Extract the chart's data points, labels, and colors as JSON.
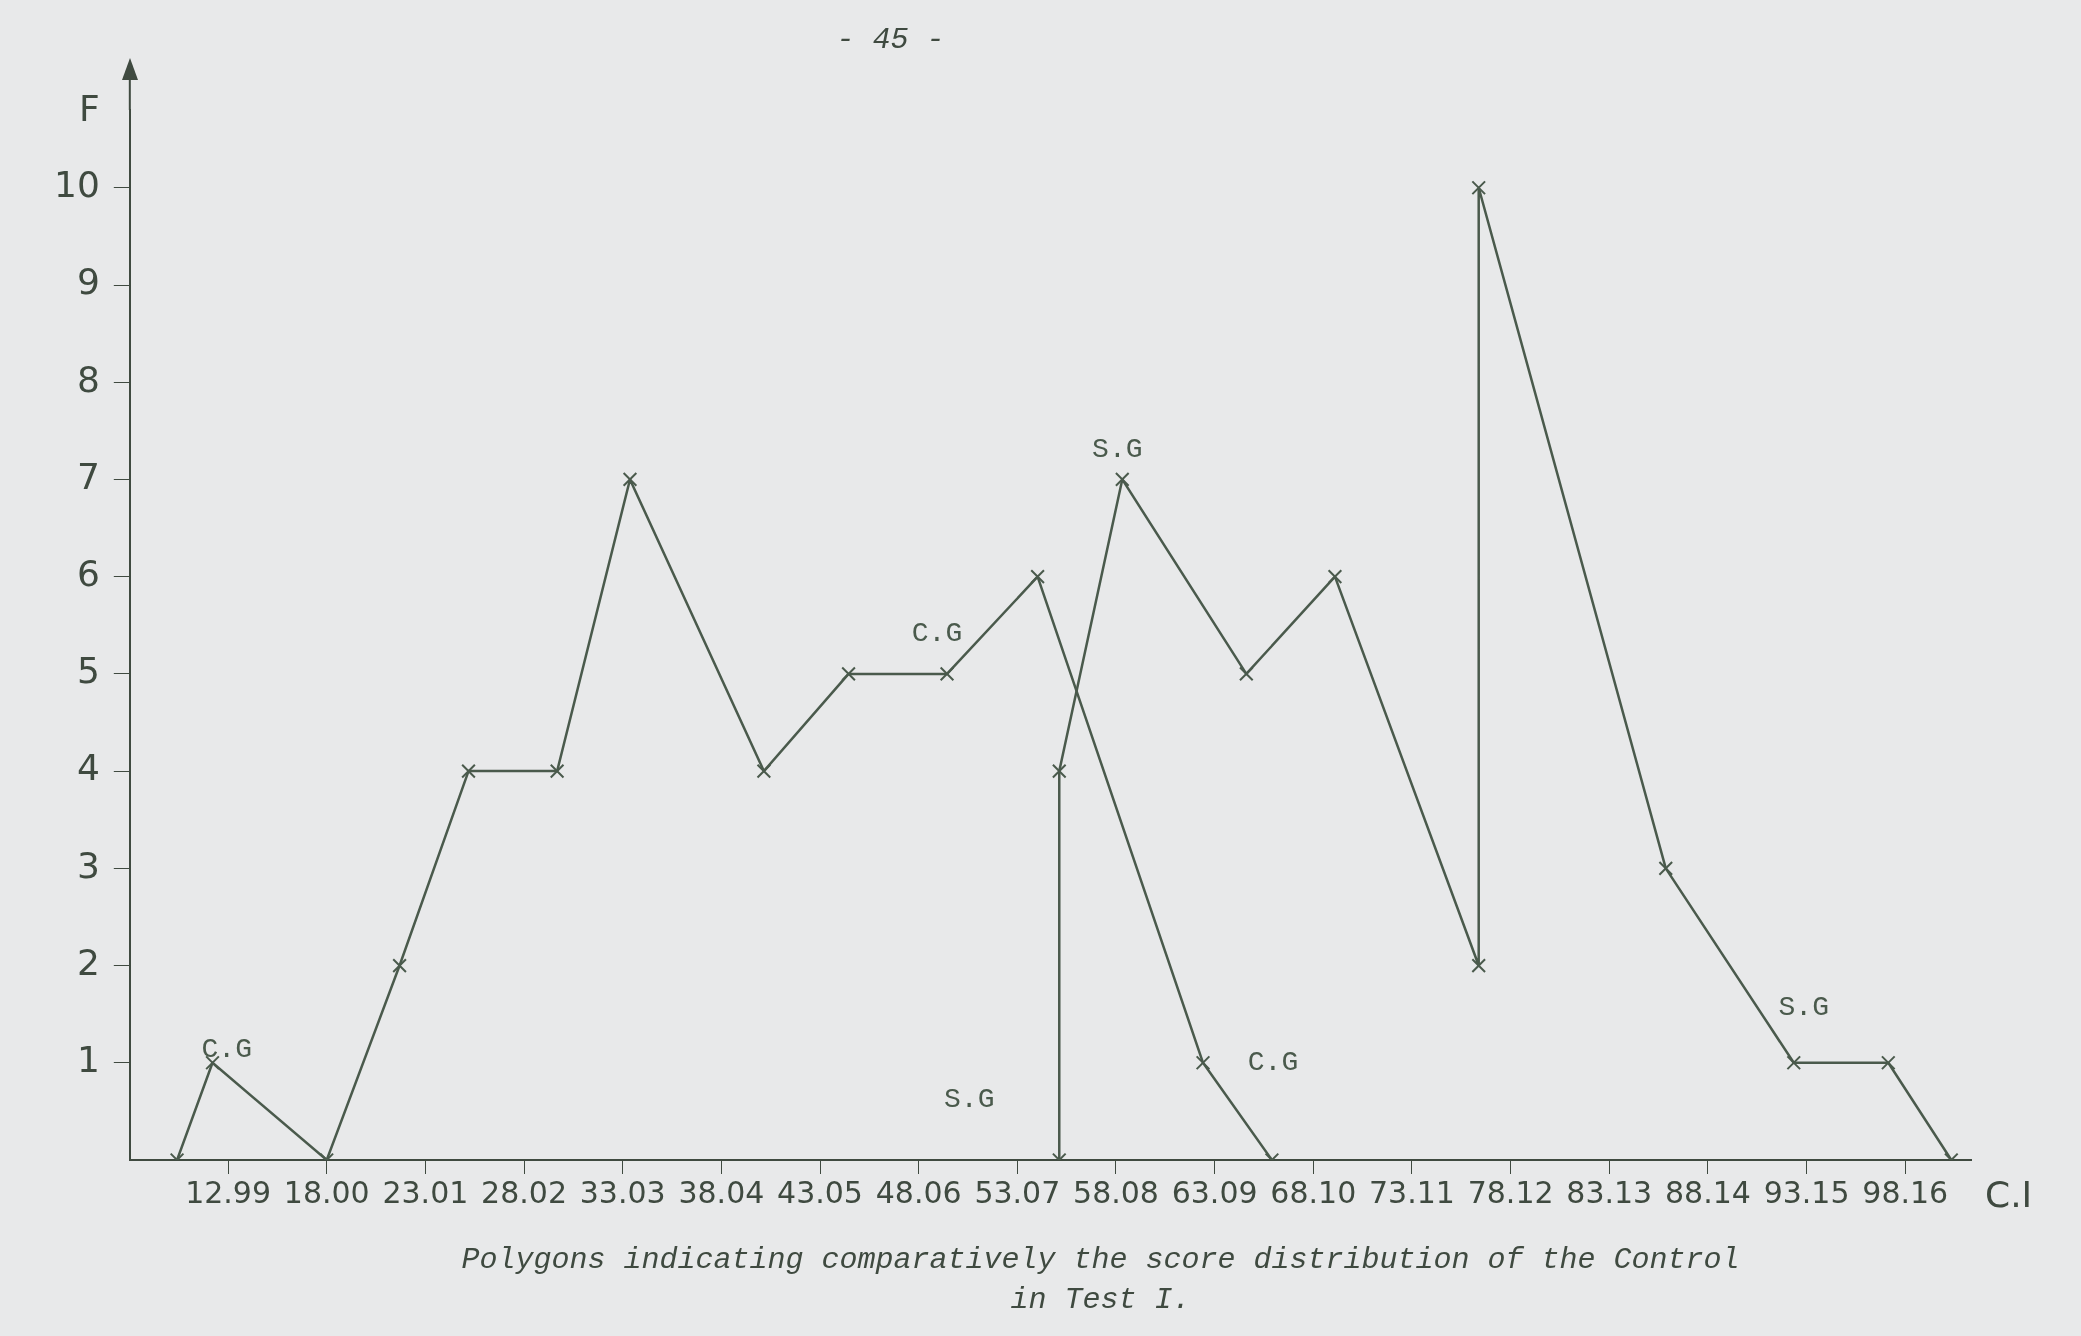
{
  "chart_data": {
    "type": "line",
    "xlabel": "C.I",
    "ylabel": "F",
    "xlim": [
      8,
      101.5
    ],
    "ylim": [
      0,
      10.8
    ],
    "xticks": [
      12.99,
      {
        "value": 18.0,
        "label": "18.00"
      },
      23.01,
      28.02,
      33.03,
      38.04,
      43.05,
      48.06,
      53.07,
      58.08,
      63.09,
      {
        "value": 68.1,
        "label": "68.10"
      },
      73.11,
      78.12,
      83.13,
      88.14,
      93.15,
      98.16
    ],
    "yticks": [
      1,
      2,
      3,
      4,
      5,
      6,
      7,
      8,
      9,
      10
    ],
    "grid": false,
    "legend": false,
    "marker": "cross",
    "line_style": "solid",
    "series": [
      {
        "name": "C.G",
        "color": "#4a5a4c",
        "x": [
          10.4,
          12.2,
          18.0,
          21.7,
          25.2,
          29.7,
          33.4,
          40.2,
          44.5,
          49.5,
          54.1,
          62.5,
          66.0
        ],
        "values": [
          0,
          1,
          0,
          2,
          4,
          4,
          7,
          4,
          5,
          5,
          6,
          1,
          0
        ]
      },
      {
        "name": "S.G",
        "color": "#4a5a4c",
        "x": [
          55.2,
          55.2,
          58.4,
          64.7,
          69.2,
          76.5,
          76.5,
          86.0,
          92.5,
          97.3,
          100.5
        ],
        "values": [
          0,
          4,
          7,
          5,
          6,
          2,
          10,
          3,
          1,
          1,
          0
        ]
      }
    ],
    "annotations": [
      "- 45 -",
      "Polygons indicating comparatively the score distribution of the Control",
      "in Test I."
    ]
  }
}
